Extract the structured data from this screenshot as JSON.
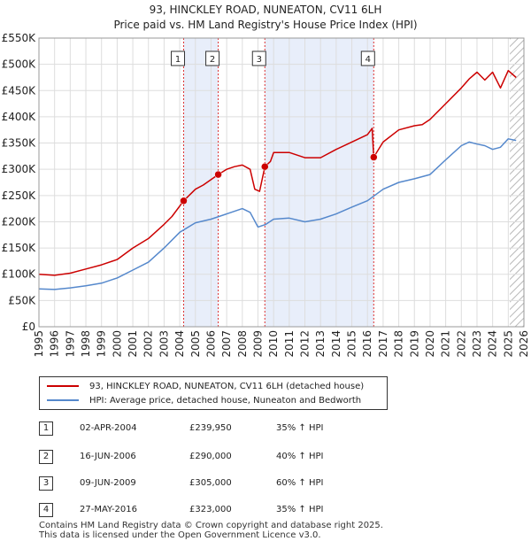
{
  "title": "93, HINCKLEY ROAD, NUNEATON, CV11 6LH",
  "subtitle": "Price paid vs. HM Land Registry's House Price Index (HPI)",
  "colors": {
    "property": "#cc0000",
    "hpi": "#5588cc",
    "shade": "#e8eefa",
    "vline": "#dd3333",
    "grid": "#dddddd"
  },
  "legend": {
    "property_label": "93, HINCKLEY ROAD, NUNEATON, CV11 6LH (detached house)",
    "hpi_label": "HPI: Average price, detached house, Nuneaton and Bedworth"
  },
  "transactions": [
    {
      "num": "1",
      "date": "02-APR-2004",
      "price": "£239,950",
      "hpi": "35% ↑ HPI"
    },
    {
      "num": "2",
      "date": "16-JUN-2006",
      "price": "£290,000",
      "hpi": "40% ↑ HPI"
    },
    {
      "num": "3",
      "date": "09-JUN-2009",
      "price": "£305,000",
      "hpi": "60% ↑ HPI"
    },
    {
      "num": "4",
      "date": "27-MAY-2016",
      "price": "£323,000",
      "hpi": "35% ↑ HPI"
    }
  ],
  "footer": {
    "line1": "Contains HM Land Registry data © Crown copyright and database right 2025.",
    "line2": "This data is licensed under the Open Government Licence v3.0."
  },
  "chart_data": {
    "type": "line",
    "title": "93, HINCKLEY ROAD, NUNEATON, CV11 6LH",
    "subtitle": "Price paid vs. HM Land Registry's House Price Index (HPI)",
    "xlim": [
      1995,
      2026
    ],
    "ylim": [
      0,
      550000
    ],
    "x_ticks": [
      1995,
      1996,
      1997,
      1998,
      1999,
      2000,
      2001,
      2002,
      2003,
      2004,
      2005,
      2006,
      2007,
      2008,
      2009,
      2010,
      2011,
      2012,
      2013,
      2014,
      2015,
      2016,
      2017,
      2018,
      2019,
      2020,
      2021,
      2022,
      2023,
      2024,
      2025,
      2026
    ],
    "y_ticks": [
      0,
      50000,
      100000,
      150000,
      200000,
      250000,
      300000,
      350000,
      400000,
      450000,
      500000,
      550000
    ],
    "y_tick_labels": [
      "£0",
      "£50K",
      "£100K",
      "£150K",
      "£200K",
      "£250K",
      "£300K",
      "£350K",
      "£400K",
      "£450K",
      "£500K",
      "£550K"
    ],
    "shaded_regions": [
      [
        2004.25,
        2006.46
      ],
      [
        2009.44,
        2016.4
      ]
    ],
    "hatched_from": 2025.1,
    "sales": [
      {
        "label": "1",
        "x": 2004.25,
        "y": 239950
      },
      {
        "label": "2",
        "x": 2006.46,
        "y": 290000
      },
      {
        "label": "3",
        "x": 2009.44,
        "y": 305000
      },
      {
        "label": "4",
        "x": 2016.4,
        "y": 323000
      }
    ],
    "series": [
      {
        "name": "93, HINCKLEY ROAD, NUNEATON, CV11 6LH (detached house)",
        "x": [
          1995,
          1996,
          1997,
          1998,
          1999,
          2000,
          2001,
          2002,
          2003,
          2003.5,
          2004.25,
          2005,
          2005.5,
          2006.46,
          2007,
          2007.5,
          2008,
          2008.5,
          2008.8,
          2009.1,
          2009.44,
          2009.8,
          2010,
          2011,
          2012,
          2013,
          2014,
          2015,
          2016,
          2016.3,
          2016.4,
          2017,
          2018,
          2019,
          2019.5,
          2020,
          2021,
          2022,
          2022.5,
          2023,
          2023.5,
          2024,
          2024.5,
          2025,
          2025.5
        ],
        "y": [
          100000,
          98000,
          102000,
          110000,
          118000,
          128000,
          150000,
          168000,
          195000,
          210000,
          239950,
          262000,
          270000,
          290000,
          300000,
          305000,
          308000,
          300000,
          262000,
          258000,
          305000,
          315000,
          332000,
          332000,
          322000,
          322000,
          338000,
          352000,
          366000,
          378000,
          323000,
          352000,
          375000,
          383000,
          385000,
          395000,
          425000,
          455000,
          472000,
          485000,
          470000,
          485000,
          455000,
          488000,
          475000
        ]
      },
      {
        "name": "HPI: Average price, detached house, Nuneaton and Bedworth",
        "x": [
          1995,
          1996,
          1997,
          1998,
          1999,
          2000,
          2001,
          2002,
          2003,
          2004,
          2005,
          2006,
          2007,
          2008,
          2008.5,
          2009,
          2009.5,
          2010,
          2011,
          2012,
          2013,
          2014,
          2015,
          2016,
          2017,
          2018,
          2019,
          2020,
          2021,
          2022,
          2022.5,
          2023,
          2023.5,
          2024,
          2024.5,
          2025,
          2025.5
        ],
        "y": [
          72000,
          71000,
          74000,
          78000,
          83000,
          93000,
          108000,
          123000,
          150000,
          180000,
          198000,
          205000,
          215000,
          225000,
          218000,
          190000,
          195000,
          205000,
          207000,
          200000,
          205000,
          215000,
          228000,
          240000,
          262000,
          275000,
          282000,
          290000,
          318000,
          345000,
          352000,
          348000,
          345000,
          338000,
          342000,
          358000,
          355000
        ]
      }
    ]
  }
}
